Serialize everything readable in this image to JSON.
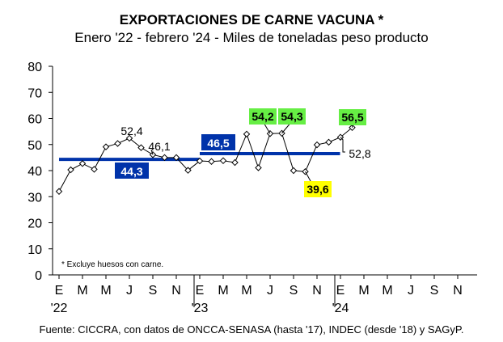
{
  "chart_data": {
    "type": "line",
    "title": "EXPORTACIONES DE CARNE VACUNA *",
    "subtitle": "Enero '22 - febrero '24 - Miles de toneladas peso producto",
    "source": "Fuente: CICCRA, con datos de ONCCA-SENASA (hasta '17), INDEC (desde '18) y SAGyP.",
    "footnote": "* Excluye huesos con carne.",
    "ylim": [
      0,
      80
    ],
    "yticks": [
      "0",
      "10",
      "20",
      "30",
      "40",
      "50",
      "60",
      "70",
      "80"
    ],
    "month_labels": [
      "E",
      "M",
      "M",
      "J",
      "S",
      "N",
      "E",
      "M",
      "M",
      "J",
      "S",
      "N",
      "E",
      "M",
      "M",
      "J",
      "S",
      "N"
    ],
    "year_labels": [
      "'22",
      "'23",
      "'24"
    ],
    "grid": false,
    "series_color": "#000000",
    "average_color": "#0033aa",
    "values": [
      32.0,
      40.3,
      42.7,
      40.5,
      49.1,
      50.4,
      52.4,
      48.8,
      46.1,
      45.0,
      45.0,
      40.1,
      43.7,
      43.5,
      43.8,
      43.1,
      54.0,
      41.1,
      54.2,
      54.3,
      40.0,
      39.6,
      49.9,
      50.9,
      52.8,
      56.5
    ],
    "averages": [
      {
        "label": "44,3",
        "value": 44.3,
        "from_index": 0,
        "to_index": 11,
        "label_bg": "#0033aa",
        "label_color": "#ffffff"
      },
      {
        "label": "46,5",
        "value": 46.5,
        "from_index": 12,
        "to_index": 23,
        "label_bg": "#0033aa",
        "label_color": "#ffffff"
      }
    ],
    "annotations": [
      {
        "index": 6,
        "text": "52,4",
        "style": "plain"
      },
      {
        "index": 8,
        "text": "46,1",
        "style": "plain"
      },
      {
        "index": 18,
        "text": "54,2",
        "style": "green"
      },
      {
        "index": 19,
        "text": "54,3",
        "style": "green"
      },
      {
        "index": 21,
        "text": "39,6",
        "style": "yellow"
      },
      {
        "index": 24,
        "text": "52,8",
        "style": "plain"
      },
      {
        "index": 25,
        "text": "56,5",
        "style": "green"
      }
    ],
    "highlight_colors": {
      "green": "#66ee44",
      "yellow": "#ffff00"
    }
  }
}
